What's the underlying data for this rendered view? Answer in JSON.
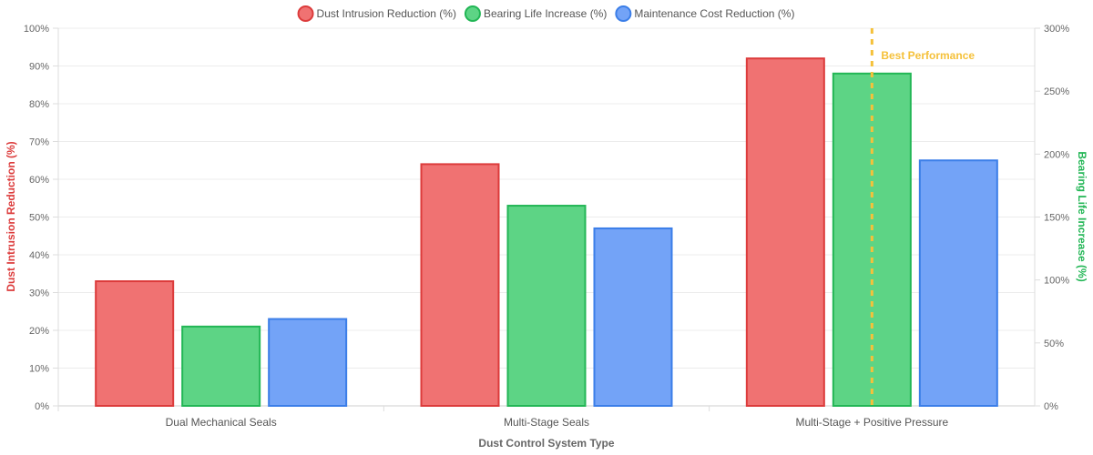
{
  "chart_data": {
    "type": "bar",
    "categories": [
      "Dual Mechanical Seals",
      "Multi-Stage Seals",
      "Multi-Stage + Positive Pressure"
    ],
    "series": [
      {
        "name": "Dust Intrusion Reduction (%)",
        "values": [
          33,
          64,
          92
        ],
        "color": "#f07272",
        "border": "#dc3b3b"
      },
      {
        "name": "Bearing Life Increase (%)",
        "values": [
          21,
          53,
          88
        ],
        "color": "#5dd485",
        "border": "#22b655"
      },
      {
        "name": "Maintenance Cost Reduction (%)",
        "values": [
          23,
          47,
          65
        ],
        "color": "#73a3f7",
        "border": "#3b7ee8"
      }
    ],
    "xlabel": "Dust Control System Type",
    "ylabel": "Dust Intrusion Reduction (%)",
    "ylabel_color": "#dc3b3b",
    "y2label": "Bearing Life Increase (%)",
    "y2label_color": "#22b655",
    "ylim": [
      0,
      100
    ],
    "y2lim": [
      0,
      300
    ],
    "yticks": [
      "0%",
      "10%",
      "20%",
      "30%",
      "40%",
      "50%",
      "60%",
      "70%",
      "80%",
      "90%",
      "100%"
    ],
    "y2ticks": [
      "0%",
      "50%",
      "100%",
      "150%",
      "200%",
      "250%",
      "300%"
    ],
    "grid": true,
    "legend_position": "top-center",
    "annotation": {
      "label": "Best Performance",
      "category_index": 2,
      "color": "#f5c13a"
    }
  }
}
